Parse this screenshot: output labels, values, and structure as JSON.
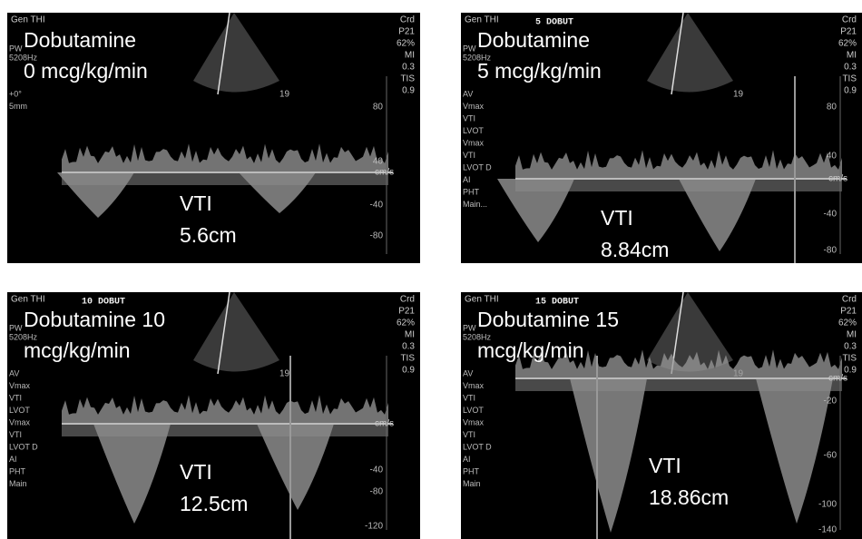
{
  "panels": [
    {
      "header": "Gen  THI",
      "label_line1": "Dobutamine",
      "label_line2": "0 mcg/kg/min",
      "vti_label": "VTI",
      "vti_value": "5.6cm",
      "side": [
        "Crd",
        "P21",
        "62%",
        "MI",
        "0.3",
        "TIS",
        "0.9"
      ],
      "left": [
        "PW",
        "5208Hz",
        "+0°",
        "5mm"
      ],
      "scale": [
        "80",
        "40",
        "-40",
        "-80"
      ],
      "unit": "cm/s",
      "depth": "19"
    },
    {
      "header": "Gen  THI",
      "protocol": "5 DOBUT",
      "label_line1": "Dobutamine",
      "label_line2": "5 mcg/kg/min",
      "vti_label": "VTI",
      "vti_value": "8.84cm",
      "side": [
        "Crd",
        "P21",
        "62%",
        "MI",
        "0.3",
        "TIS",
        "0.9"
      ],
      "left": [
        "PW",
        "5208Hz",
        "AV",
        "Vmax",
        "VTI",
        "LVOT",
        "Vmax",
        "VTI",
        "LVOT D",
        "AI",
        "PHT",
        "Main..."
      ],
      "scale": [
        "80",
        "40",
        "-40",
        "-80"
      ],
      "unit": "cm/s",
      "depth": "19"
    },
    {
      "header": "Gen  THI",
      "protocol": "10 DOBUT",
      "label_line1": "Dobutamine 10",
      "label_line2": "mcg/kg/min",
      "vti_label": "VTI",
      "vti_value": "12.5cm",
      "side": [
        "Crd",
        "P21",
        "62%",
        "MI",
        "0.3",
        "TIS",
        "0.9"
      ],
      "left": [
        "PW",
        "5208Hz",
        "AV",
        "Vmax",
        "VTI",
        "LVOT",
        "Vmax",
        "VTI",
        "LVOT D",
        "AI",
        "PHT",
        "Main"
      ],
      "scale": [
        "-40",
        "-80",
        "-120"
      ],
      "unit": "cm/s",
      "depth": "19"
    },
    {
      "header": "Gen  THI",
      "protocol": "15 DOBUT",
      "label_line1": "Dobutamine 15",
      "label_line2": "mcg/kg/min",
      "vti_label": "VTI",
      "vti_value": "18.86cm",
      "side": [
        "Crd",
        "P21",
        "62%",
        "MI",
        "0.3",
        "TIS",
        "0.9"
      ],
      "left": [
        "PW",
        "5208Hz",
        "AV",
        "Vmax",
        "VTI",
        "LVOT",
        "Vmax",
        "VTI",
        "LVOT D",
        "AI",
        "PHT",
        "Main"
      ],
      "scale": [
        "-20",
        "-60",
        "-100",
        "-140"
      ],
      "unit": "cm/s",
      "depth": "19"
    }
  ]
}
